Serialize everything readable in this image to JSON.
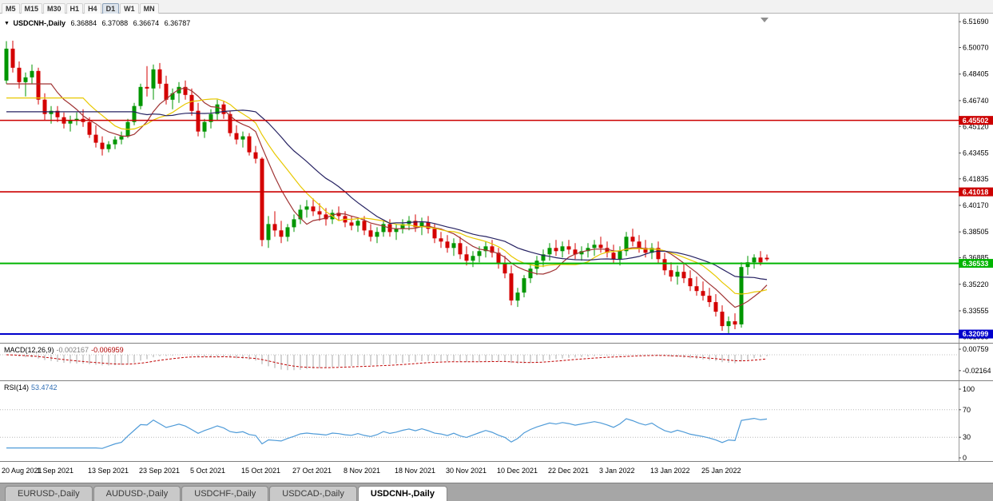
{
  "toolbar": {
    "timeframes": [
      "M5",
      "M15",
      "M30",
      "H1",
      "H4",
      "D1",
      "W1",
      "MN"
    ],
    "active": "D1"
  },
  "symbol_line": {
    "symbol": "USDCNH-,Daily",
    "open": "6.36884",
    "high": "6.37088",
    "low": "6.36674",
    "close": "6.36787"
  },
  "macd_panel": {
    "title": "MACD(12,26,9)",
    "main_value": "-0.002167",
    "signal_value": "-0.006959",
    "axis_ticks": [
      {
        "v": 0.00759,
        "label": "0.00759"
      },
      {
        "v": -0.02164,
        "label": "-0.02164"
      }
    ]
  },
  "rsi_panel": {
    "title": "RSI(14)",
    "value": "53.4742",
    "axis_ticks": [
      {
        "v": 100,
        "label": "100"
      },
      {
        "v": 70,
        "label": "70"
      },
      {
        "v": 30,
        "label": "30"
      },
      {
        "v": 0,
        "label": "0"
      }
    ],
    "guide_levels": [
      70,
      30
    ]
  },
  "tabs": [
    {
      "label": "EURUSD-,Daily",
      "active": false
    },
    {
      "label": "AUDUSD-,Daily",
      "active": false
    },
    {
      "label": "USDCHF-,Daily",
      "active": false
    },
    {
      "label": "USDCAD-,Daily",
      "active": false
    },
    {
      "label": "USDCNH-,Daily",
      "active": true
    }
  ],
  "chart_data": {
    "type": "candlestick",
    "symbol": "USDCNH",
    "timeframe": "Daily",
    "title": "USDCNH-,Daily",
    "last_ohlc": {
      "open": 6.36884,
      "high": 6.37088,
      "low": 6.36674,
      "close": 6.36787
    },
    "up_color": "#009600",
    "down_color": "#d40000",
    "price_scale": {
      "top": 6.522,
      "bottom": 6.315,
      "ticks": [
        "6.51690",
        "6.50070",
        "6.48405",
        "6.46740",
        "6.45120",
        "6.43455",
        "6.41835",
        "6.40170",
        "6.38505",
        "6.36885",
        "6.35220",
        "6.33555",
        "6.31935"
      ]
    },
    "horizontal_lines": [
      {
        "price": 6.45502,
        "label": "6.45502",
        "color": "#cc0000",
        "width": 1.6
      },
      {
        "price": 6.41018,
        "label": "6.41018",
        "color": "#cc0000",
        "width": 1.6
      },
      {
        "price": 6.36533,
        "label": "6.36533",
        "color": "#00b400",
        "width": 2
      },
      {
        "price": 6.32099,
        "label": "6.32099",
        "color": "#0000cc",
        "width": 2
      }
    ],
    "moving_averages": [
      {
        "period": 8,
        "color": "#a03434"
      },
      {
        "period": 13,
        "color": "#e8c800"
      },
      {
        "period": 21,
        "color": "#262262"
      }
    ],
    "indicators": {
      "macd": {
        "fast": 12,
        "slow": 26,
        "signal": 9
      },
      "rsi": {
        "period": 14
      }
    },
    "x_labels": [
      {
        "i": 0,
        "t": "20 Aug 2021"
      },
      {
        "i": 8,
        "t": "1 Sep 2021"
      },
      {
        "i": 16,
        "t": "13 Sep 2021"
      },
      {
        "i": 24,
        "t": "23 Sep 2021"
      },
      {
        "i": 32,
        "t": "5 Oct 2021"
      },
      {
        "i": 40,
        "t": "15 Oct 2021"
      },
      {
        "i": 48,
        "t": "27 Oct 2021"
      },
      {
        "i": 56,
        "t": "8 Nov 2021"
      },
      {
        "i": 64,
        "t": "18 Nov 2021"
      },
      {
        "i": 72,
        "t": "30 Nov 2021"
      },
      {
        "i": 80,
        "t": "10 Dec 2021"
      },
      {
        "i": 88,
        "t": "22 Dec 2021"
      },
      {
        "i": 96,
        "t": "3 Jan 2022"
      },
      {
        "i": 104,
        "t": "13 Jan 2022"
      },
      {
        "i": 112,
        "t": "25 Jan 2022"
      }
    ],
    "candles": [
      [
        6.48,
        6.5047,
        6.478,
        6.5
      ],
      [
        6.5,
        6.505,
        6.485,
        6.488
      ],
      [
        6.488,
        6.492,
        6.475,
        6.479
      ],
      [
        6.479,
        6.485,
        6.47,
        6.482
      ],
      [
        6.482,
        6.49,
        6.478,
        6.486
      ],
      [
        6.486,
        6.488,
        6.465,
        6.468
      ],
      [
        6.468,
        6.472,
        6.455,
        6.459
      ],
      [
        6.459,
        6.464,
        6.453,
        6.461
      ],
      [
        6.461,
        6.464,
        6.454,
        6.457
      ],
      [
        6.457,
        6.46,
        6.45,
        6.453
      ],
      [
        6.453,
        6.458,
        6.448,
        6.455
      ],
      [
        6.455,
        6.46,
        6.452,
        6.456
      ],
      [
        6.456,
        6.462,
        6.451,
        6.454
      ],
      [
        6.454,
        6.457,
        6.444,
        6.446
      ],
      [
        6.446,
        6.452,
        6.438,
        6.441
      ],
      [
        6.441,
        6.445,
        6.433,
        6.437
      ],
      [
        6.437,
        6.442,
        6.435,
        6.44
      ],
      [
        6.44,
        6.445,
        6.437,
        6.443
      ],
      [
        6.443,
        6.448,
        6.44,
        6.445
      ],
      [
        6.445,
        6.456,
        6.444,
        6.454
      ],
      [
        6.454,
        6.466,
        6.452,
        6.464
      ],
      [
        6.464,
        6.478,
        6.462,
        6.476
      ],
      [
        6.476,
        6.489,
        6.47,
        6.475
      ],
      [
        6.475,
        6.49,
        6.468,
        6.487
      ],
      [
        6.487,
        6.491,
        6.475,
        6.478
      ],
      [
        6.478,
        6.483,
        6.465,
        6.468
      ],
      [
        6.468,
        6.475,
        6.462,
        6.472
      ],
      [
        6.472,
        6.479,
        6.466,
        6.476
      ],
      [
        6.476,
        6.48,
        6.468,
        6.471
      ],
      [
        6.471,
        6.475,
        6.458,
        6.461
      ],
      [
        6.461,
        6.466,
        6.445,
        6.448
      ],
      [
        6.448,
        6.456,
        6.444,
        6.454
      ],
      [
        6.454,
        6.462,
        6.45,
        6.459
      ],
      [
        6.459,
        6.468,
        6.455,
        6.465
      ],
      [
        6.465,
        6.467,
        6.456,
        6.459
      ],
      [
        6.459,
        6.461,
        6.445,
        6.447
      ],
      [
        6.447,
        6.452,
        6.44,
        6.443
      ],
      [
        6.443,
        6.448,
        6.438,
        6.445
      ],
      [
        6.445,
        6.447,
        6.433,
        6.435
      ],
      [
        6.435,
        6.439,
        6.428,
        6.431
      ],
      [
        6.431,
        6.432,
        6.376,
        6.38
      ],
      [
        6.38,
        6.395,
        6.375,
        6.39
      ],
      [
        6.39,
        6.398,
        6.382,
        6.386
      ],
      [
        6.386,
        6.392,
        6.378,
        6.382
      ],
      [
        6.382,
        6.39,
        6.379,
        6.388
      ],
      [
        6.388,
        6.396,
        6.385,
        6.393
      ],
      [
        6.393,
        6.402,
        6.39,
        6.399
      ],
      [
        6.399,
        6.405,
        6.394,
        6.401
      ],
      [
        6.401,
        6.406,
        6.395,
        6.398
      ],
      [
        6.398,
        6.403,
        6.392,
        6.396
      ],
      [
        6.396,
        6.4,
        6.389,
        6.393
      ],
      [
        6.393,
        6.399,
        6.39,
        6.397
      ],
      [
        6.397,
        6.401,
        6.392,
        6.395
      ],
      [
        6.395,
        6.398,
        6.388,
        6.391
      ],
      [
        6.391,
        6.395,
        6.386,
        6.389
      ],
      [
        6.389,
        6.394,
        6.385,
        6.392
      ],
      [
        6.392,
        6.395,
        6.383,
        6.386
      ],
      [
        6.386,
        6.39,
        6.379,
        6.382
      ],
      [
        6.382,
        6.388,
        6.378,
        6.385
      ],
      [
        6.385,
        6.392,
        6.382,
        6.39
      ],
      [
        6.39,
        6.393,
        6.382,
        6.385
      ],
      [
        6.385,
        6.39,
        6.38,
        6.387
      ],
      [
        6.387,
        6.393,
        6.384,
        6.39
      ],
      [
        6.39,
        6.395,
        6.386,
        6.392
      ],
      [
        6.392,
        6.396,
        6.385,
        6.388
      ],
      [
        6.388,
        6.394,
        6.383,
        6.391
      ],
      [
        6.391,
        6.395,
        6.384,
        6.387
      ],
      [
        6.387,
        6.39,
        6.378,
        6.381
      ],
      [
        6.381,
        6.385,
        6.375,
        6.379
      ],
      [
        6.379,
        6.383,
        6.372,
        6.375
      ],
      [
        6.375,
        6.381,
        6.37,
        6.378
      ],
      [
        6.378,
        6.382,
        6.368,
        6.371
      ],
      [
        6.371,
        6.376,
        6.364,
        6.367
      ],
      [
        6.367,
        6.373,
        6.363,
        6.37
      ],
      [
        6.37,
        6.376,
        6.366,
        6.373
      ],
      [
        6.373,
        6.379,
        6.369,
        6.376
      ],
      [
        6.376,
        6.38,
        6.369,
        6.372
      ],
      [
        6.372,
        6.375,
        6.362,
        6.365
      ],
      [
        6.365,
        6.37,
        6.356,
        6.359
      ],
      [
        6.359,
        6.364,
        6.339,
        6.342
      ],
      [
        6.342,
        6.35,
        6.338,
        6.347
      ],
      [
        6.347,
        6.358,
        6.344,
        6.356
      ],
      [
        6.356,
        6.365,
        6.353,
        6.362
      ],
      [
        6.362,
        6.37,
        6.358,
        6.367
      ],
      [
        6.367,
        6.374,
        6.363,
        6.371
      ],
      [
        6.371,
        6.378,
        6.367,
        6.375
      ],
      [
        6.375,
        6.38,
        6.37,
        6.373
      ],
      [
        6.373,
        6.379,
        6.369,
        6.376
      ],
      [
        6.376,
        6.38,
        6.371,
        6.374
      ],
      [
        6.374,
        6.378,
        6.368,
        6.371
      ],
      [
        6.371,
        6.376,
        6.367,
        6.373
      ],
      [
        6.373,
        6.378,
        6.369,
        6.375
      ],
      [
        6.375,
        6.38,
        6.37,
        6.377
      ],
      [
        6.377,
        6.382,
        6.372,
        6.375
      ],
      [
        6.375,
        6.379,
        6.369,
        6.372
      ],
      [
        6.372,
        6.377,
        6.365,
        6.368
      ],
      [
        6.368,
        6.376,
        6.364,
        6.373
      ],
      [
        6.373,
        6.385,
        6.37,
        6.382
      ],
      [
        6.382,
        6.387,
        6.376,
        6.379
      ],
      [
        6.379,
        6.383,
        6.372,
        6.375
      ],
      [
        6.375,
        6.38,
        6.369,
        6.372
      ],
      [
        6.372,
        6.378,
        6.368,
        6.375
      ],
      [
        6.375,
        6.379,
        6.365,
        6.368
      ],
      [
        6.368,
        6.372,
        6.358,
        6.361
      ],
      [
        6.361,
        6.366,
        6.354,
        6.357
      ],
      [
        6.357,
        6.364,
        6.352,
        6.36
      ],
      [
        6.36,
        6.365,
        6.353,
        6.356
      ],
      [
        6.356,
        6.361,
        6.348,
        6.351
      ],
      [
        6.351,
        6.357,
        6.345,
        6.348
      ],
      [
        6.348,
        6.354,
        6.342,
        6.345
      ],
      [
        6.345,
        6.35,
        6.338,
        6.341
      ],
      [
        6.341,
        6.346,
        6.332,
        6.335
      ],
      [
        6.335,
        6.339,
        6.323,
        6.326
      ],
      [
        6.326,
        6.332,
        6.321,
        6.329
      ],
      [
        6.329,
        6.334,
        6.324,
        6.327
      ],
      [
        6.327,
        6.366,
        6.325,
        6.363
      ],
      [
        6.363,
        6.37,
        6.358,
        6.366
      ],
      [
        6.366,
        6.371,
        6.362,
        6.369
      ],
      [
        6.369,
        6.373,
        6.364,
        6.366
      ],
      [
        6.36884,
        6.37088,
        6.36674,
        6.36787
      ]
    ]
  }
}
